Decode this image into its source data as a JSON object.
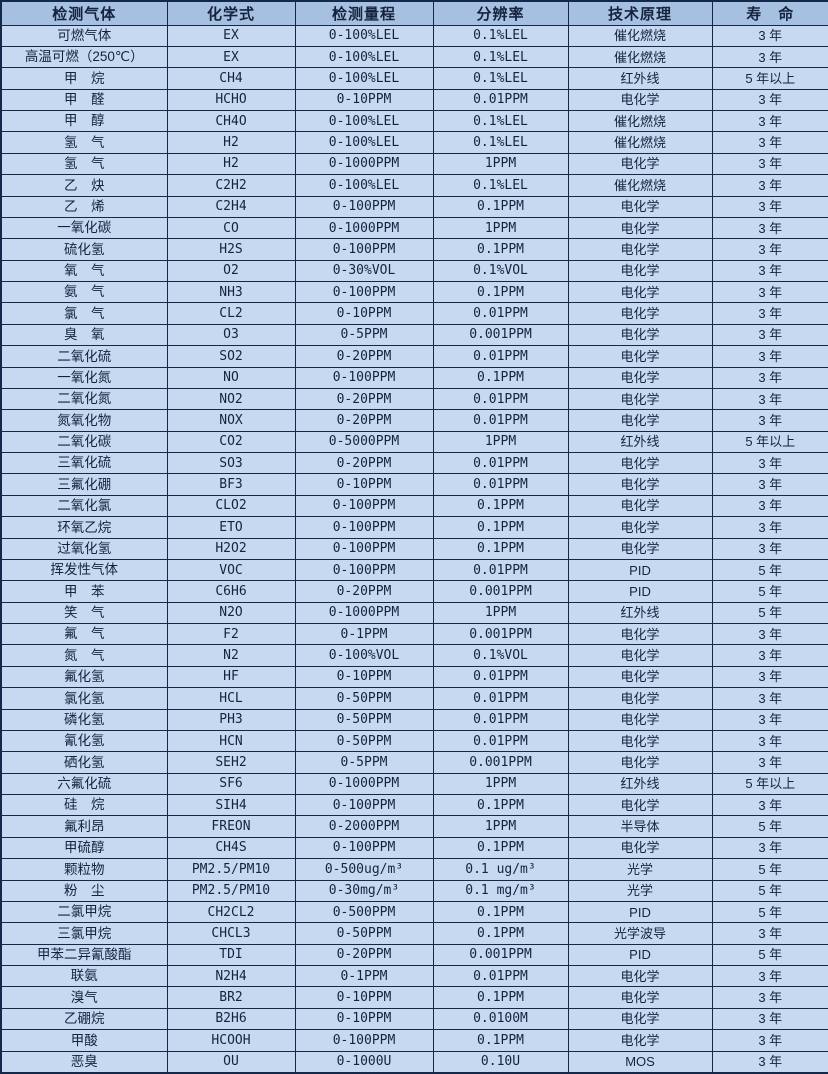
{
  "colors": {
    "header_bg": "#a5c0e0",
    "row_bg": "#c6d9f1",
    "border": "#14294a",
    "text": "#15233f"
  },
  "table": {
    "headers": [
      "检测气体",
      "化学式",
      "检测量程",
      "分辨率",
      "技术原理",
      "寿　命"
    ],
    "column_keys": [
      "gas",
      "formula",
      "range",
      "resolution",
      "principle",
      "lifespan"
    ],
    "rows": [
      [
        "可燃气体",
        "EX",
        "0-100%LEL",
        "0.1%LEL",
        "催化燃烧",
        "3 年"
      ],
      [
        "高温可燃（250℃）",
        "EX",
        "0-100%LEL",
        "0.1%LEL",
        "催化燃烧",
        "3 年"
      ],
      [
        "甲　烷",
        "CH4",
        "0-100%LEL",
        "0.1%LEL",
        "红外线",
        "5 年以上"
      ],
      [
        "甲　醛",
        "HCHO",
        "0-10PPM",
        "0.01PPM",
        "电化学",
        "3 年"
      ],
      [
        "甲　醇",
        "CH4O",
        "0-100%LEL",
        "0.1%LEL",
        "催化燃烧",
        "3 年"
      ],
      [
        "氢　气",
        "H2",
        "0-100%LEL",
        "0.1%LEL",
        "催化燃烧",
        "3 年"
      ],
      [
        "氢　气",
        "H2",
        "0-1000PPM",
        "1PPM",
        "电化学",
        "3 年"
      ],
      [
        "乙　炔",
        "C2H2",
        "0-100%LEL",
        "0.1%LEL",
        "催化燃烧",
        "3 年"
      ],
      [
        "乙　烯",
        "C2H4",
        "0-100PPM",
        "0.1PPM",
        "电化学",
        "3 年"
      ],
      [
        "一氧化碳",
        "CO",
        "0-1000PPM",
        "1PPM",
        "电化学",
        "3 年"
      ],
      [
        "硫化氢",
        "H2S",
        "0-100PPM",
        "0.1PPM",
        "电化学",
        "3 年"
      ],
      [
        "氧　气",
        "O2",
        "0-30%VOL",
        "0.1%VOL",
        "电化学",
        "3 年"
      ],
      [
        "氨　气",
        "NH3",
        "0-100PPM",
        "0.1PPM",
        "电化学",
        "3 年"
      ],
      [
        "氯　气",
        "CL2",
        "0-10PPM",
        "0.01PPM",
        "电化学",
        "3 年"
      ],
      [
        "臭　氧",
        "O3",
        "0-5PPM",
        "0.001PPM",
        "电化学",
        "3 年"
      ],
      [
        "二氧化硫",
        "SO2",
        "0-20PPM",
        "0.01PPM",
        "电化学",
        "3 年"
      ],
      [
        "一氧化氮",
        "NO",
        "0-100PPM",
        "0.1PPM",
        "电化学",
        "3 年"
      ],
      [
        "二氧化氮",
        "NO2",
        "0-20PPM",
        "0.01PPM",
        "电化学",
        "3 年"
      ],
      [
        "氮氧化物",
        "NOX",
        "0-20PPM",
        "0.01PPM",
        "电化学",
        "3 年"
      ],
      [
        "二氧化碳",
        "CO2",
        "0-5000PPM",
        "1PPM",
        "红外线",
        "5 年以上"
      ],
      [
        "三氧化硫",
        "SO3",
        "0-20PPM",
        "0.01PPM",
        "电化学",
        "3 年"
      ],
      [
        "三氟化硼",
        "BF3",
        "0-10PPM",
        "0.01PPM",
        "电化学",
        "3 年"
      ],
      [
        "二氧化氯",
        "CLO2",
        "0-100PPM",
        "0.1PPM",
        "电化学",
        "3 年"
      ],
      [
        "环氧乙烷",
        "ETO",
        "0-100PPM",
        "0.1PPM",
        "电化学",
        "3 年"
      ],
      [
        "过氧化氢",
        "H2O2",
        "0-100PPM",
        "0.1PPM",
        "电化学",
        "3 年"
      ],
      [
        "挥发性气体",
        "VOC",
        "0-100PPM",
        "0.01PPM",
        "PID",
        "5 年"
      ],
      [
        "甲　苯",
        "C6H6",
        "0-20PPM",
        "0.001PPM",
        "PID",
        "5 年"
      ],
      [
        "笑　气",
        "N2O",
        "0-1000PPM",
        "1PPM",
        "红外线",
        "5 年"
      ],
      [
        "氟　气",
        "F2",
        "0-1PPM",
        "0.001PPM",
        "电化学",
        "3 年"
      ],
      [
        "氮　气",
        "N2",
        "0-100%VOL",
        "0.1%VOL",
        "电化学",
        "3 年"
      ],
      [
        "氟化氢",
        "HF",
        "0-10PPM",
        "0.01PPM",
        "电化学",
        "3 年"
      ],
      [
        "氯化氢",
        "HCL",
        "0-50PPM",
        "0.01PPM",
        "电化学",
        "3 年"
      ],
      [
        "磷化氢",
        "PH3",
        "0-50PPM",
        "0.01PPM",
        "电化学",
        "3 年"
      ],
      [
        "氰化氢",
        "HCN",
        "0-50PPM",
        "0.01PPM",
        "电化学",
        "3 年"
      ],
      [
        "硒化氢",
        "SEH2",
        "0-5PPM",
        "0.001PPM",
        "电化学",
        "3 年"
      ],
      [
        "六氟化硫",
        "SF6",
        "0-1000PPM",
        "1PPM",
        "红外线",
        "5 年以上"
      ],
      [
        "硅　烷",
        "SIH4",
        "0-100PPM",
        "0.1PPM",
        "电化学",
        "3 年"
      ],
      [
        "氟利昂",
        "FREON",
        "0-2000PPM",
        "1PPM",
        "半导体",
        "5 年"
      ],
      [
        "甲硫醇",
        "CH4S",
        "0-100PPM",
        "0.1PPM",
        "电化学",
        "3 年"
      ],
      [
        "颗粒物",
        "PM2.5/PM10",
        "0-500ug/m³",
        "0.1 ug/m³",
        "光学",
        "5 年"
      ],
      [
        "粉　尘",
        "PM2.5/PM10",
        "0-30mg/m³",
        "0.1 mg/m³",
        "光学",
        "5 年"
      ],
      [
        "二氯甲烷",
        "CH2CL2",
        "0-500PPM",
        "0.1PPM",
        "PID",
        "5 年"
      ],
      [
        "三氯甲烷",
        "CHCL3",
        "0-50PPM",
        "0.1PPM",
        "光学波导",
        "3 年"
      ],
      [
        "甲苯二异氰酸酯",
        "TDI",
        "0-20PPM",
        "0.001PPM",
        "PID",
        "5 年"
      ],
      [
        "联氨",
        "N2H4",
        "0-1PPM",
        "0.01PPM",
        "电化学",
        "3 年"
      ],
      [
        "溴气",
        "BR2",
        "0-10PPM",
        "0.1PPM",
        "电化学",
        "3 年"
      ],
      [
        "乙硼烷",
        "B2H6",
        "0-10PPM",
        "0.0100M",
        "电化学",
        "3 年"
      ],
      [
        "甲酸",
        "HCOOH",
        "0-100PPM",
        "0.1PPM",
        "电化学",
        "3 年"
      ],
      [
        "恶臭",
        "OU",
        "0-1000U",
        "0.10U",
        "MOS",
        "3 年"
      ]
    ]
  }
}
